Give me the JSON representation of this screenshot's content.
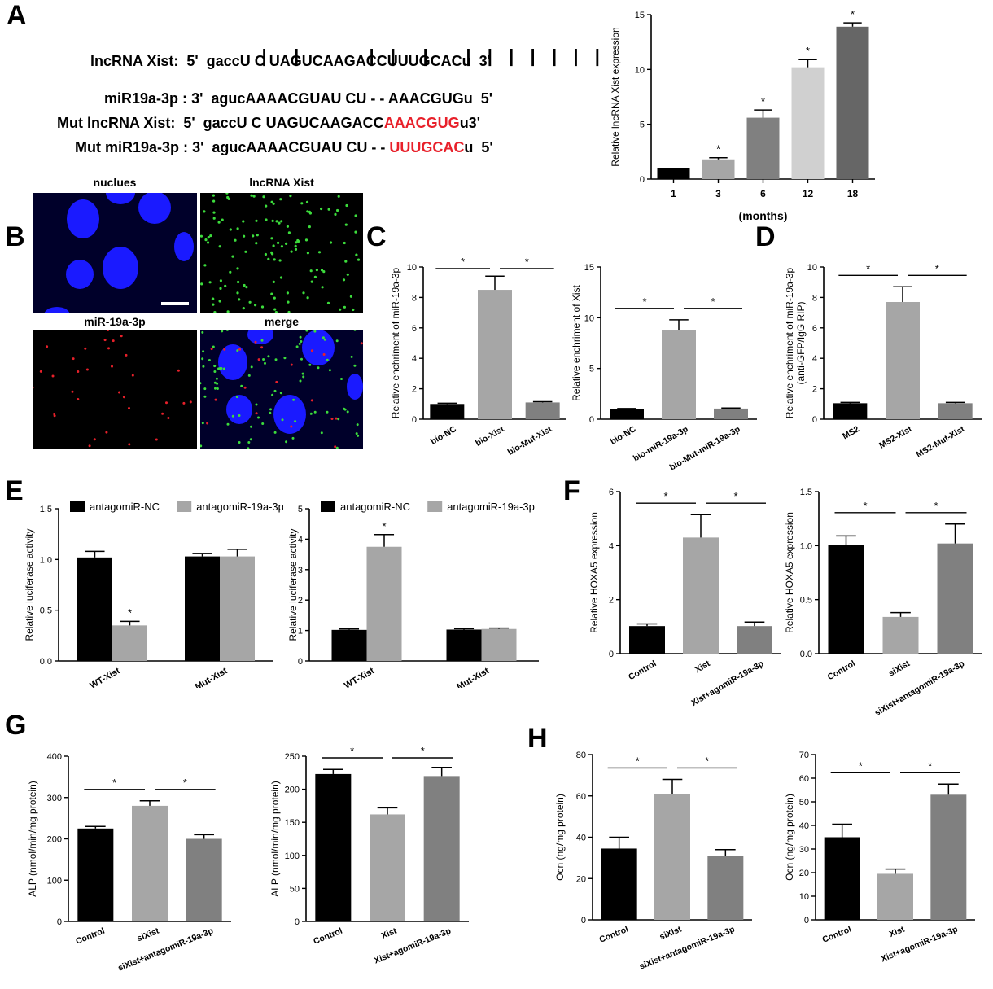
{
  "panels": {
    "A": "A",
    "B": "B",
    "C": "C",
    "D": "D",
    "E": "E",
    "F": "F",
    "G": "G",
    "H": "H"
  },
  "sequences": {
    "row1": {
      "label": "lncRNA Xist:",
      "prefix": "5'  gaccU C UAGUCAAGACCUUUGCACu  3'",
      "red": ""
    },
    "row2": {
      "label": "miR19a-3p :",
      "prefix": "3'  agucAAAACGUAU CU - - AAACGUGu  5'",
      "red": ""
    },
    "row3": {
      "label": "Mut lncRNA Xist:",
      "prefix": "5'  gaccU C UAGUCAAGACC",
      "red": "AAACGUG",
      "suffix": "u3'"
    },
    "row4": {
      "label": "Mut miR19a-3p :",
      "prefix": "3'  agucAAAACGUAU CU - - ",
      "red": "UUUGCAC",
      "suffix": "u  5'"
    }
  },
  "micrographs": {
    "nuclei": "nuclues",
    "xist": "lncRNA Xist",
    "mir": "miR-19a-3p",
    "merge": "merge"
  },
  "colors": {
    "black": "#000000",
    "grey_light": "#a6a6a6",
    "grey_mid": "#808080",
    "grey_pale": "#d0d0d0",
    "grey_dark": "#666666",
    "red": "#e8202a",
    "nucleus": "#1428ff",
    "green": "#3cdc3c"
  },
  "chart_data": [
    {
      "id": "A",
      "type": "bar",
      "xlabel": "(months)",
      "ylabel": "Relative lncRNA Xist expression",
      "ylim": [
        0,
        15
      ],
      "yticks": [
        0,
        5,
        10,
        15
      ],
      "categories": [
        "1",
        "3",
        "6",
        "12",
        "18"
      ],
      "values": [
        1.0,
        1.8,
        5.6,
        10.2,
        13.9
      ],
      "errors": [
        0,
        0.15,
        0.7,
        0.7,
        0.35
      ],
      "colors": [
        "#000000",
        "#a6a6a6",
        "#808080",
        "#d0d0d0",
        "#666666"
      ],
      "sig": [
        "",
        "*",
        "*",
        "*",
        "*"
      ]
    },
    {
      "id": "C1",
      "type": "bar",
      "xlabel": "",
      "ylabel": "Relative enchriment of miR-19a-3p",
      "ylim": [
        0,
        10
      ],
      "yticks": [
        0,
        2,
        4,
        6,
        8,
        10
      ],
      "categories": [
        "bio-NC",
        "bio-Xist",
        "bio-Mut-Xist"
      ],
      "values": [
        1.0,
        8.5,
        1.1
      ],
      "errors": [
        0.05,
        0.9,
        0.05
      ],
      "colors": [
        "#000000",
        "#a6a6a6",
        "#808080"
      ],
      "brackets": [
        {
          "from": 0,
          "to": 1,
          "label": "*"
        },
        {
          "from": 1,
          "to": 2,
          "label": "*"
        }
      ]
    },
    {
      "id": "C2",
      "type": "bar",
      "xlabel": "",
      "ylabel": "Relative enchriment of Xist",
      "ylim": [
        0,
        15
      ],
      "yticks": [
        0,
        5,
        10,
        15
      ],
      "categories": [
        "bio-NC",
        "bio-miR-19a-3p",
        "bio-Mut-miR-19a-3p"
      ],
      "values": [
        1.0,
        8.8,
        1.05
      ],
      "errors": [
        0.05,
        1.0,
        0.05
      ],
      "colors": [
        "#000000",
        "#a6a6a6",
        "#808080"
      ],
      "brackets": [
        {
          "from": 0,
          "to": 1,
          "label": "*"
        },
        {
          "from": 1,
          "to": 2,
          "label": "*"
        }
      ]
    },
    {
      "id": "D",
      "type": "bar",
      "xlabel": "",
      "ylabel": "Relative enchriment of miR-19a-3p",
      "ylabel2": "(anti-GFP/IgG RIP)",
      "ylim": [
        0,
        10
      ],
      "yticks": [
        0,
        2,
        4,
        6,
        8,
        10
      ],
      "categories": [
        "MS2",
        "MS2-Xist",
        "MS2-Mut-Xist"
      ],
      "values": [
        1.05,
        7.7,
        1.05
      ],
      "errors": [
        0.05,
        1.0,
        0.05
      ],
      "colors": [
        "#000000",
        "#a6a6a6",
        "#808080"
      ],
      "brackets": [
        {
          "from": 0,
          "to": 1,
          "label": "*"
        },
        {
          "from": 1,
          "to": 2,
          "label": "*"
        }
      ]
    },
    {
      "id": "E1",
      "type": "bar",
      "xlabel": "",
      "ylabel": "Relative luciferase activity",
      "ylim": [
        0,
        1.5
      ],
      "yticks": [
        0.0,
        0.5,
        1.0,
        1.5
      ],
      "categories": [
        "WT-Xist",
        "Mut-Xist"
      ],
      "series": [
        {
          "name": "antagomiR-NC",
          "color": "#000000",
          "values": [
            1.02,
            1.03
          ],
          "errors": [
            0.06,
            0.03
          ]
        },
        {
          "name": "antagomiR-19a-3p",
          "color": "#a6a6a6",
          "values": [
            0.35,
            1.03
          ],
          "errors": [
            0.04,
            0.07
          ]
        }
      ],
      "sig": [
        [
          "",
          "*"
        ],
        [
          "",
          ""
        ]
      ]
    },
    {
      "id": "E2",
      "type": "bar",
      "xlabel": "",
      "ylabel": "Relative luciferase activity",
      "ylim": [
        0,
        5
      ],
      "yticks": [
        0,
        1,
        2,
        3,
        4,
        5
      ],
      "categories": [
        "WT-Xist",
        "Mut-Xist"
      ],
      "series": [
        {
          "name": "antagomiR-NC",
          "color": "#000000",
          "values": [
            1.02,
            1.03
          ],
          "errors": [
            0.03,
            0.03
          ]
        },
        {
          "name": "antagomiR-19a-3p",
          "color": "#a6a6a6",
          "values": [
            3.75,
            1.05
          ],
          "errors": [
            0.4,
            0.03
          ]
        }
      ],
      "sig": [
        [
          "",
          "*"
        ],
        [
          "",
          ""
        ]
      ]
    },
    {
      "id": "F1",
      "type": "bar",
      "xlabel": "",
      "ylabel": "Relative HOXA5 expression",
      "ylim": [
        0,
        6
      ],
      "yticks": [
        0,
        2,
        4,
        6
      ],
      "categories": [
        "Control",
        "Xist",
        "Xist+agomiR-19a-3p"
      ],
      "values": [
        1.02,
        4.3,
        1.02
      ],
      "errors": [
        0.08,
        0.85,
        0.15
      ],
      "colors": [
        "#000000",
        "#a6a6a6",
        "#808080"
      ],
      "brackets": [
        {
          "from": 0,
          "to": 1,
          "label": "*"
        },
        {
          "from": 1,
          "to": 2,
          "label": "*"
        }
      ]
    },
    {
      "id": "F2",
      "type": "bar",
      "xlabel": "",
      "ylabel": "Relative HOXA5 expression",
      "ylim": [
        0,
        1.5
      ],
      "yticks": [
        0.0,
        0.5,
        1.0,
        1.5
      ],
      "categories": [
        "Control",
        "siXist",
        "siXist+antagomiR-19a-3p"
      ],
      "values": [
        1.01,
        0.34,
        1.02
      ],
      "errors": [
        0.08,
        0.04,
        0.18
      ],
      "colors": [
        "#000000",
        "#a6a6a6",
        "#808080"
      ],
      "brackets": [
        {
          "from": 0,
          "to": 1,
          "label": "*"
        },
        {
          "from": 1,
          "to": 2,
          "label": "*"
        }
      ]
    },
    {
      "id": "G1",
      "type": "bar",
      "xlabel": "",
      "ylabel": "ALP (nmol/min/mg protein)",
      "ylim": [
        0,
        400
      ],
      "yticks": [
        0,
        100,
        200,
        300,
        400
      ],
      "categories": [
        "Control",
        "siXist",
        "siXist+antagomiR-19a-3p"
      ],
      "values": [
        225,
        280,
        200
      ],
      "errors": [
        5,
        12,
        10
      ],
      "colors": [
        "#000000",
        "#a6a6a6",
        "#808080"
      ],
      "brackets": [
        {
          "from": 0,
          "to": 1,
          "label": "*"
        },
        {
          "from": 1,
          "to": 2,
          "label": "*"
        }
      ]
    },
    {
      "id": "G2",
      "type": "bar",
      "xlabel": "",
      "ylabel": "ALP (nmol/min/mg protein)",
      "ylim": [
        0,
        250
      ],
      "yticks": [
        0,
        50,
        100,
        150,
        200,
        250
      ],
      "categories": [
        "Control",
        "Xist",
        "Xist+agomiR-19a-3p"
      ],
      "values": [
        223,
        162,
        220
      ],
      "errors": [
        7,
        10,
        13
      ],
      "colors": [
        "#000000",
        "#a6a6a6",
        "#808080"
      ],
      "brackets": [
        {
          "from": 0,
          "to": 1,
          "label": "*"
        },
        {
          "from": 1,
          "to": 2,
          "label": "*"
        }
      ]
    },
    {
      "id": "H1",
      "type": "bar",
      "xlabel": "",
      "ylabel": "Ocn (ng/mg protein)",
      "ylim": [
        0,
        80
      ],
      "yticks": [
        0,
        20,
        40,
        60,
        80
      ],
      "categories": [
        "Control",
        "siXist",
        "siXist+antagomiR-19a-3p"
      ],
      "values": [
        34.5,
        61,
        31
      ],
      "errors": [
        5.5,
        7,
        3
      ],
      "colors": [
        "#000000",
        "#a6a6a6",
        "#808080"
      ],
      "brackets": [
        {
          "from": 0,
          "to": 1,
          "label": "*"
        },
        {
          "from": 1,
          "to": 2,
          "label": "*"
        }
      ]
    },
    {
      "id": "H2",
      "type": "bar",
      "xlabel": "",
      "ylabel": "Ocn (ng/mg protein)",
      "ylim": [
        0,
        70
      ],
      "yticks": [
        0,
        10,
        20,
        30,
        40,
        50,
        60,
        70
      ],
      "categories": [
        "Control",
        "Xist",
        "Xist+agomiR-19a-3p"
      ],
      "values": [
        35,
        19.5,
        53
      ],
      "errors": [
        5.5,
        2,
        4.5
      ],
      "colors": [
        "#000000",
        "#a6a6a6",
        "#808080"
      ],
      "brackets": [
        {
          "from": 0,
          "to": 1,
          "label": "*"
        },
        {
          "from": 1,
          "to": 2,
          "label": "*"
        }
      ]
    }
  ]
}
